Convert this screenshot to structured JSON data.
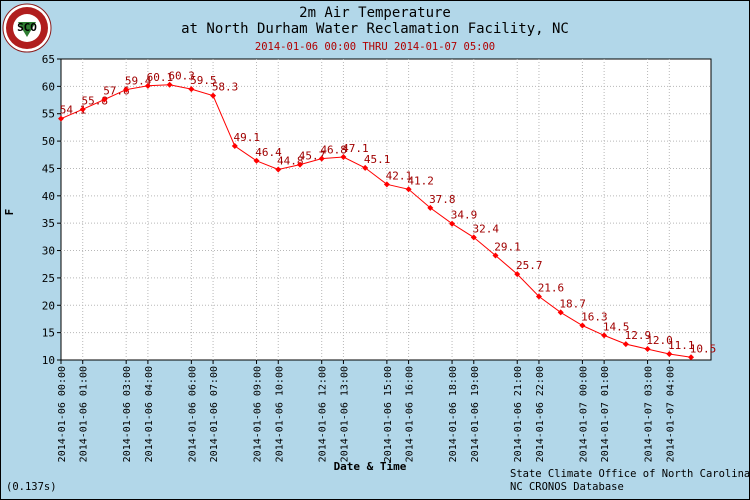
{
  "header": {
    "title_line1": "2m Air Temperature",
    "title_line2": "at North Durham Water Reclamation Facility, NC",
    "subtitle": "2014-01-06 00:00 THRU 2014-01-07 05:00",
    "logo_text": "SCO"
  },
  "footer": {
    "credit_line1": "State Climate Office of North Carolina",
    "credit_line2": "NC CRONOS Database",
    "timing": "(0.137s)"
  },
  "colors": {
    "background": "#b2d7e9",
    "plot_area": "#ffffff",
    "series": "#ff0000",
    "label_text": "#a00000",
    "subtitle_text": "#b00000",
    "grid": "#b8b8b8"
  },
  "chart_data": {
    "type": "line",
    "xlabel": "Date & Time",
    "ylabel": "F",
    "ylim": [
      10,
      65
    ],
    "yticks": [
      10,
      15,
      20,
      25,
      30,
      35,
      40,
      45,
      50,
      55,
      60,
      65
    ],
    "grid": true,
    "x_tick_labels": [
      "2014-01-06 00:00",
      "2014-01-06 01:00",
      "2014-01-06 03:00",
      "2014-01-06 04:00",
      "2014-01-06 06:00",
      "2014-01-06 07:00",
      "2014-01-06 09:00",
      "2014-01-06 10:00",
      "2014-01-06 12:00",
      "2014-01-06 13:00",
      "2014-01-06 15:00",
      "2014-01-06 16:00",
      "2014-01-06 18:00",
      "2014-01-06 19:00",
      "2014-01-06 21:00",
      "2014-01-06 22:00",
      "2014-01-07 00:00",
      "2014-01-07 01:00",
      "2014-01-07 03:00",
      "2014-01-07 04:00"
    ],
    "x": [
      "2014-01-06 00:00",
      "2014-01-06 01:00",
      "2014-01-06 02:00",
      "2014-01-06 03:00",
      "2014-01-06 04:00",
      "2014-01-06 05:00",
      "2014-01-06 06:00",
      "2014-01-06 07:00",
      "2014-01-06 08:00",
      "2014-01-06 09:00",
      "2014-01-06 10:00",
      "2014-01-06 11:00",
      "2014-01-06 12:00",
      "2014-01-06 13:00",
      "2014-01-06 14:00",
      "2014-01-06 15:00",
      "2014-01-06 16:00",
      "2014-01-06 17:00",
      "2014-01-06 18:00",
      "2014-01-06 19:00",
      "2014-01-06 20:00",
      "2014-01-06 21:00",
      "2014-01-06 22:00",
      "2014-01-06 23:00",
      "2014-01-07 00:00",
      "2014-01-07 01:00",
      "2014-01-07 02:00",
      "2014-01-07 03:00",
      "2014-01-07 04:00",
      "2014-01-07 05:00"
    ],
    "values": [
      54.1,
      55.8,
      57.6,
      59.4,
      60.1,
      60.3,
      59.5,
      58.3,
      49.1,
      46.4,
      44.8,
      45.7,
      46.8,
      47.1,
      45.1,
      42.1,
      41.2,
      37.8,
      34.9,
      32.4,
      29.1,
      25.7,
      21.6,
      18.7,
      16.3,
      14.5,
      12.9,
      12.0,
      11.1,
      10.5
    ],
    "point_labels": [
      "54.1",
      "55.8",
      "57.6",
      "59.4",
      "60.1",
      "60.3",
      "59.5",
      "58.3",
      "49.1",
      "46.4",
      "44.8",
      "45.7",
      "46.8",
      "47.1",
      "45.1",
      "42.1",
      "41.2",
      "37.8",
      "34.9",
      "32.4",
      "29.1",
      "25.7",
      "21.6",
      "18.7",
      "16.3",
      "14.5",
      "12.9",
      "12.0",
      "11.1",
      "10.5"
    ]
  }
}
